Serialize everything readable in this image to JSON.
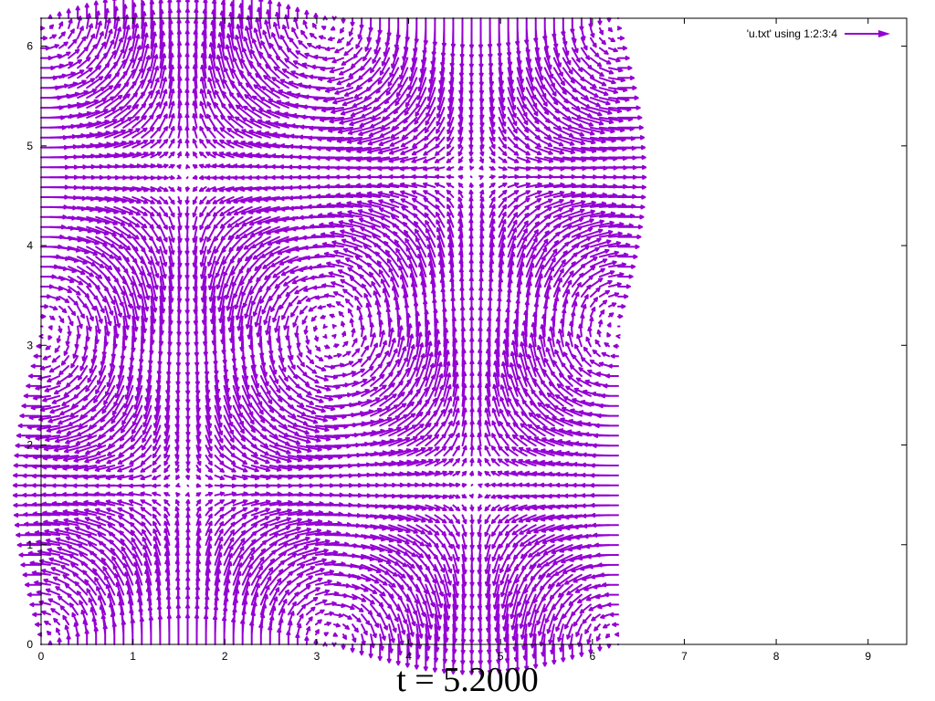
{
  "caption": "t = 5.2000",
  "chart_data": {
    "type": "vector-field",
    "title": "",
    "xlabel": "",
    "ylabel": "",
    "xlim": [
      0,
      9.42
    ],
    "ylim": [
      0,
      6.28
    ],
    "xticks": [
      "0",
      "1",
      "2",
      "3",
      "4",
      "5",
      "6",
      "7",
      "8",
      "9"
    ],
    "yticks": [
      "0",
      "1",
      "2",
      "3",
      "4",
      "5",
      "6"
    ],
    "grid": false,
    "legend": {
      "placement": "top-right",
      "entries": [
        {
          "label": "'u.txt' using 1:2:3:4",
          "color": "#9400d3"
        }
      ]
    },
    "series": [
      {
        "name": "'u.txt' using 1:2:3:4",
        "color": "#9400d3",
        "field": "u = -cos(x)·sin(y), v = sin(x)·cos(y)",
        "x_range": [
          0,
          6.28
        ],
        "y_range": [
          0,
          6.28
        ],
        "nx": 64,
        "ny": 64
      }
    ]
  }
}
